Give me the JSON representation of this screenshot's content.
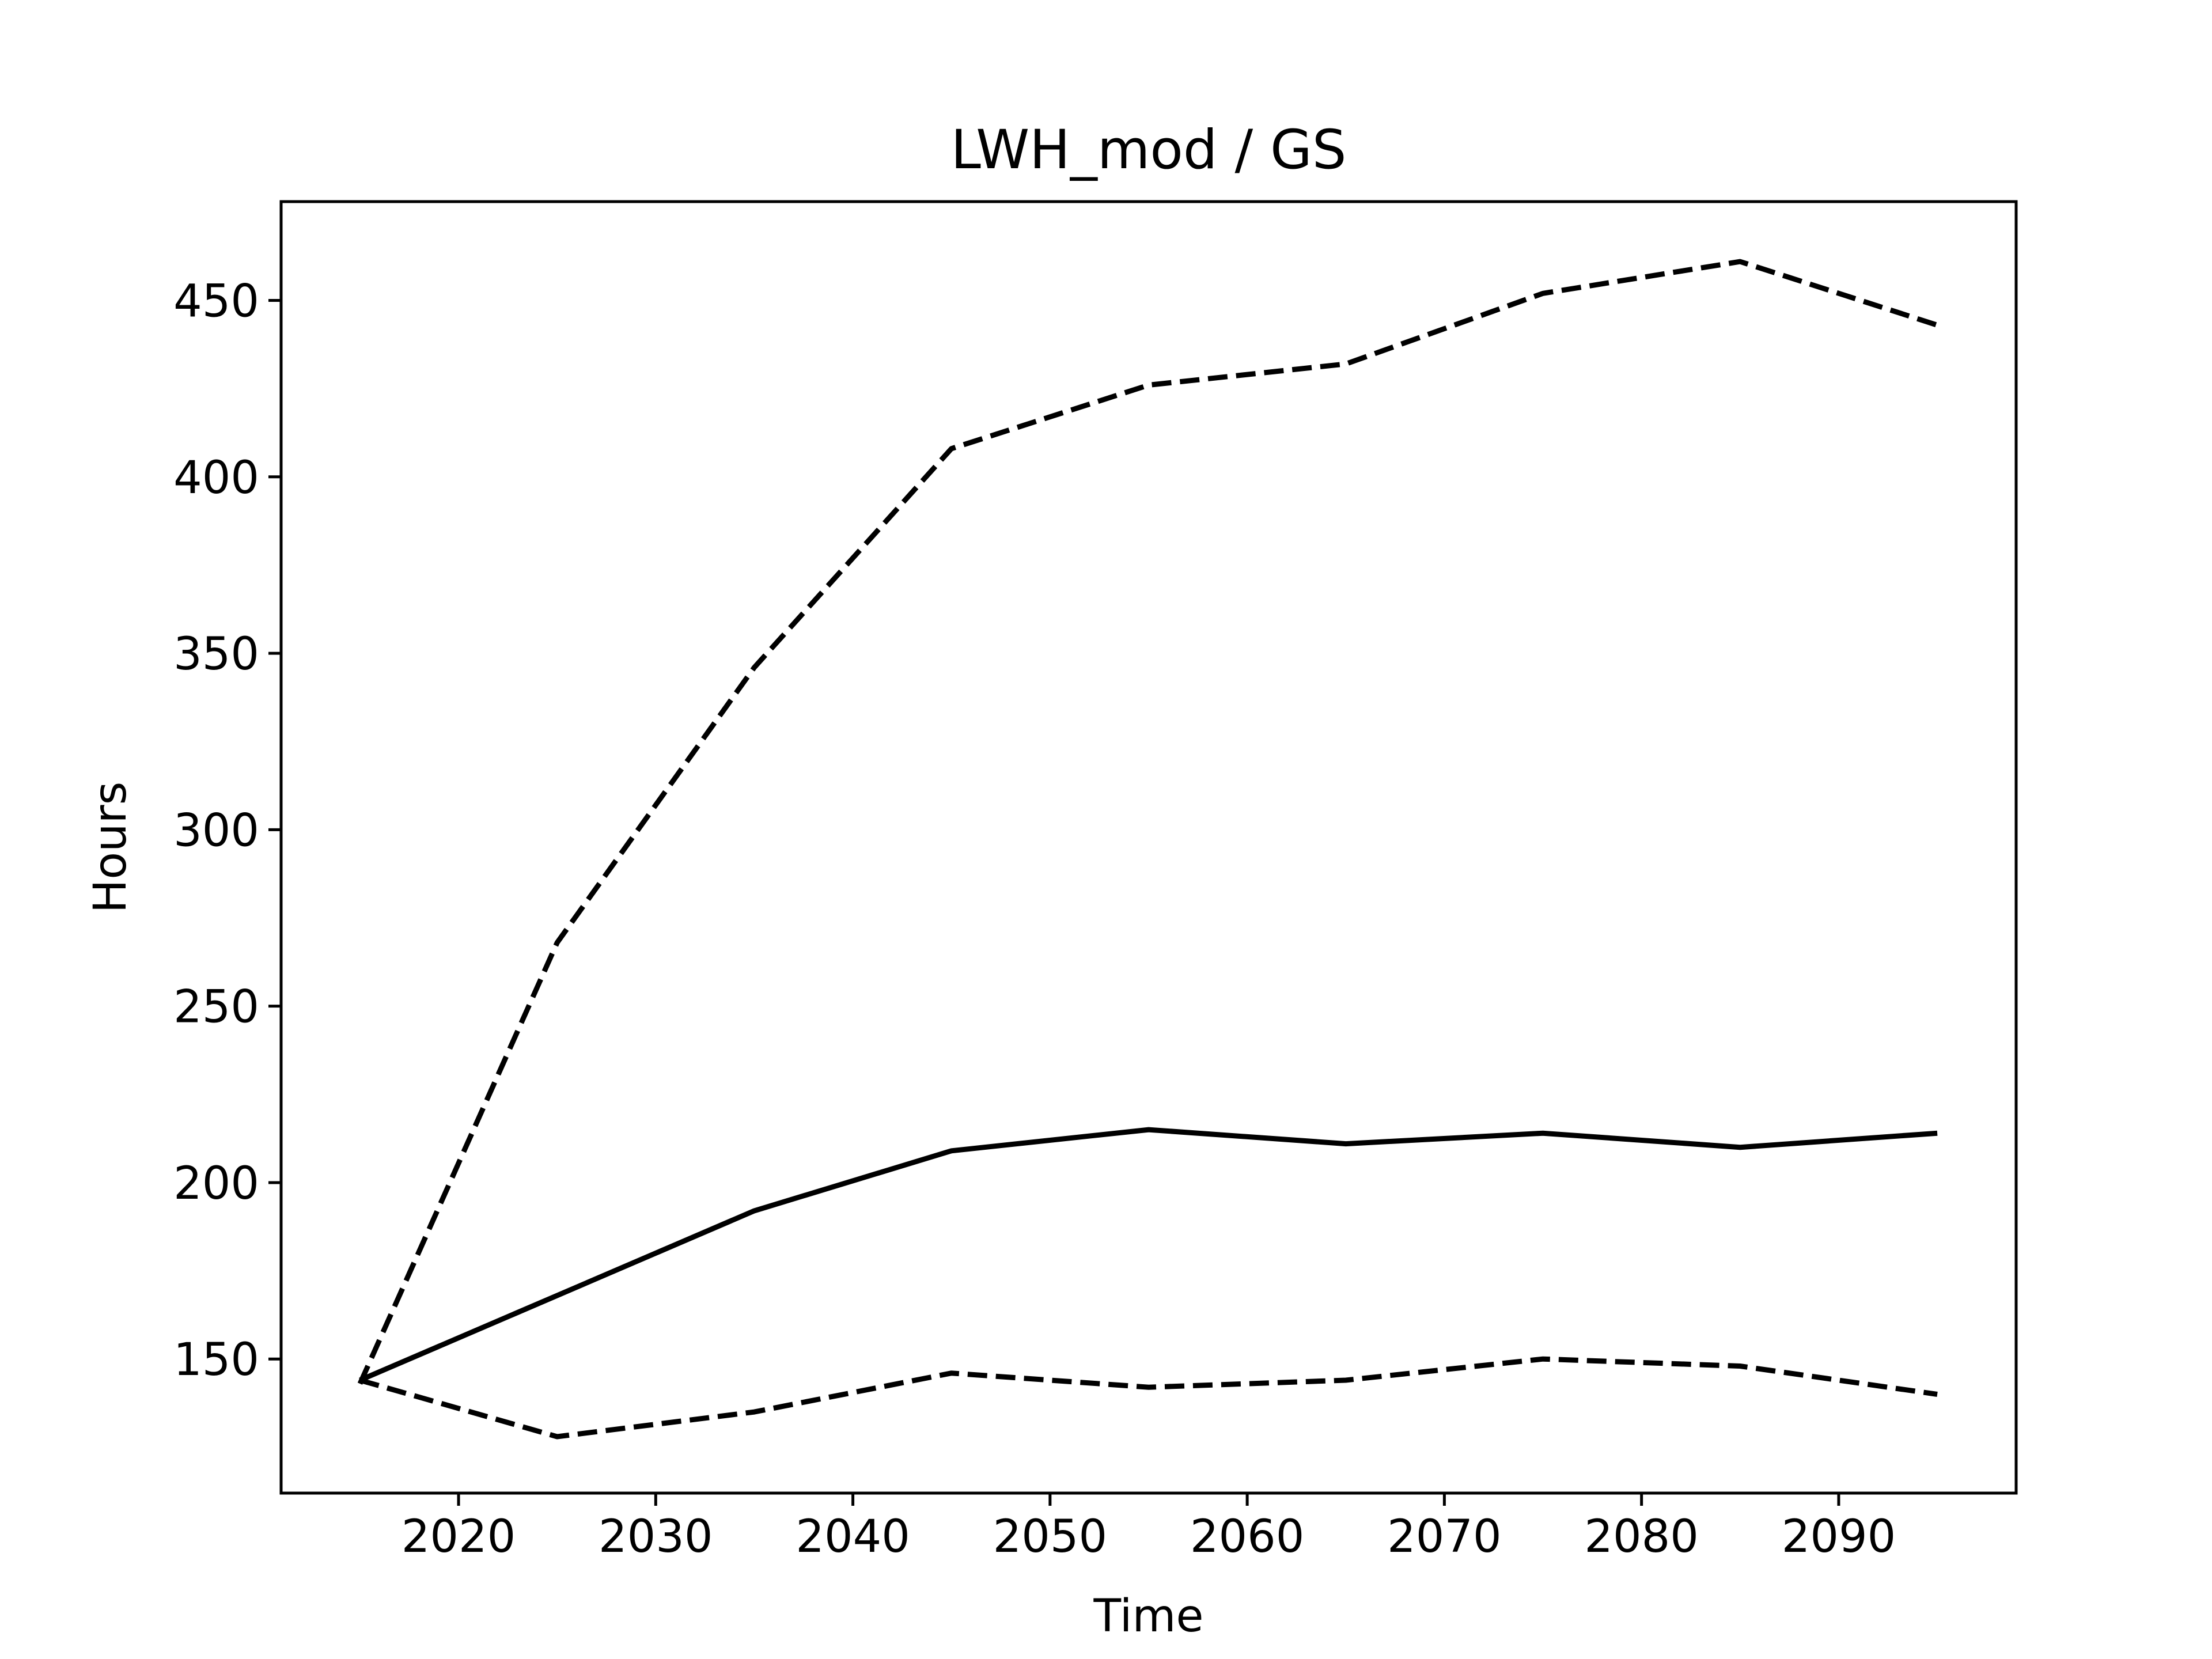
{
  "chart_data": {
    "type": "line",
    "title": "LWH_mod / GS",
    "xlabel": "Time",
    "ylabel": "Hours",
    "x": [
      2015,
      2025,
      2035,
      2045,
      2055,
      2065,
      2075,
      2085,
      2095
    ],
    "xlim": [
      2011,
      2099
    ],
    "ylim": [
      112,
      478
    ],
    "xticks": [
      2020,
      2030,
      2040,
      2050,
      2060,
      2070,
      2080,
      2090
    ],
    "yticks": [
      150,
      200,
      250,
      300,
      350,
      400,
      450
    ],
    "grid": false,
    "series": [
      {
        "style": "dashed",
        "color": "#000000",
        "values": [
          143,
          268,
          346,
          408,
          426,
          432,
          452,
          461,
          443
        ]
      },
      {
        "style": "solid",
        "color": "#000000",
        "values": [
          144,
          168,
          192,
          209,
          215,
          211,
          214,
          210,
          214
        ]
      },
      {
        "style": "dashed",
        "color": "#000000",
        "values": [
          144,
          128,
          135,
          146,
          142,
          144,
          150,
          148,
          140
        ]
      }
    ]
  }
}
